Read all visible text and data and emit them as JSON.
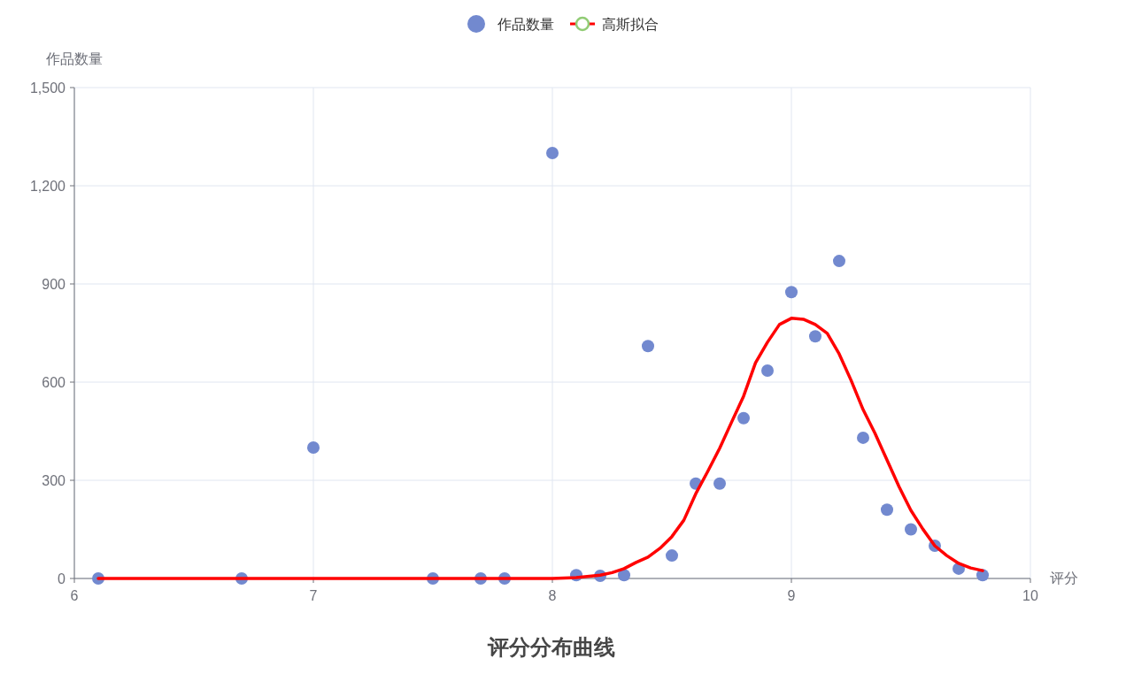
{
  "chart_data": {
    "type": "scatter",
    "title": "评分分布曲线",
    "xlabel": "评分",
    "ylabel": "作品数量",
    "xlim": [
      6,
      10
    ],
    "xticks": [
      6,
      7,
      8,
      9,
      10
    ],
    "ylim": [
      0,
      1500
    ],
    "yticks": [
      0,
      300,
      600,
      900,
      {
        "value": 1200,
        "label": "1,200"
      },
      {
        "value": 1500,
        "label": "1,500"
      }
    ],
    "grid": true,
    "legend": "top",
    "series": [
      {
        "name": "作品数量",
        "marker": "circle",
        "color": "#7289cf",
        "x": [
          6.1,
          6.7,
          7.0,
          7.5,
          7.7,
          7.8,
          8.0,
          8.1,
          8.2,
          8.3,
          8.4,
          8.5,
          8.6,
          8.7,
          8.8,
          8.9,
          9.0,
          9.1,
          9.2,
          9.3,
          9.4,
          9.5,
          9.6,
          9.7,
          9.8
        ],
        "values": [
          0,
          0,
          400,
          0,
          0,
          0,
          1300,
          10,
          8,
          10,
          710,
          70,
          290,
          290,
          490,
          635,
          875,
          740,
          970,
          430,
          210,
          150,
          100,
          30,
          10
        ]
      },
      {
        "name": "高斯拟合",
        "type": "line",
        "marker": "none",
        "line_style": "solid",
        "color": "#ff0000",
        "x": [
          6.1,
          7.0,
          7.5,
          8.0,
          8.1,
          8.2,
          8.25,
          8.3,
          8.35,
          8.4,
          8.45,
          8.5,
          8.55,
          8.6,
          8.65,
          8.7,
          8.75,
          8.8,
          8.85,
          8.9,
          8.95,
          9.0,
          9.05,
          9.1,
          9.15,
          9.2,
          9.25,
          9.3,
          9.35,
          9.4,
          9.45,
          9.5,
          9.55,
          9.6,
          9.65,
          9.7,
          9.75,
          9.8
        ],
        "values": [
          0,
          0,
          0,
          0,
          3,
          10,
          18,
          30,
          49,
          65,
          92,
          128,
          178,
          259,
          327,
          398,
          478,
          557,
          659,
          722,
          776,
          795,
          792,
          776,
          749,
          686,
          605,
          516,
          443,
          362,
          281,
          208,
          151,
          100,
          70,
          46,
          32,
          24
        ]
      }
    ]
  }
}
